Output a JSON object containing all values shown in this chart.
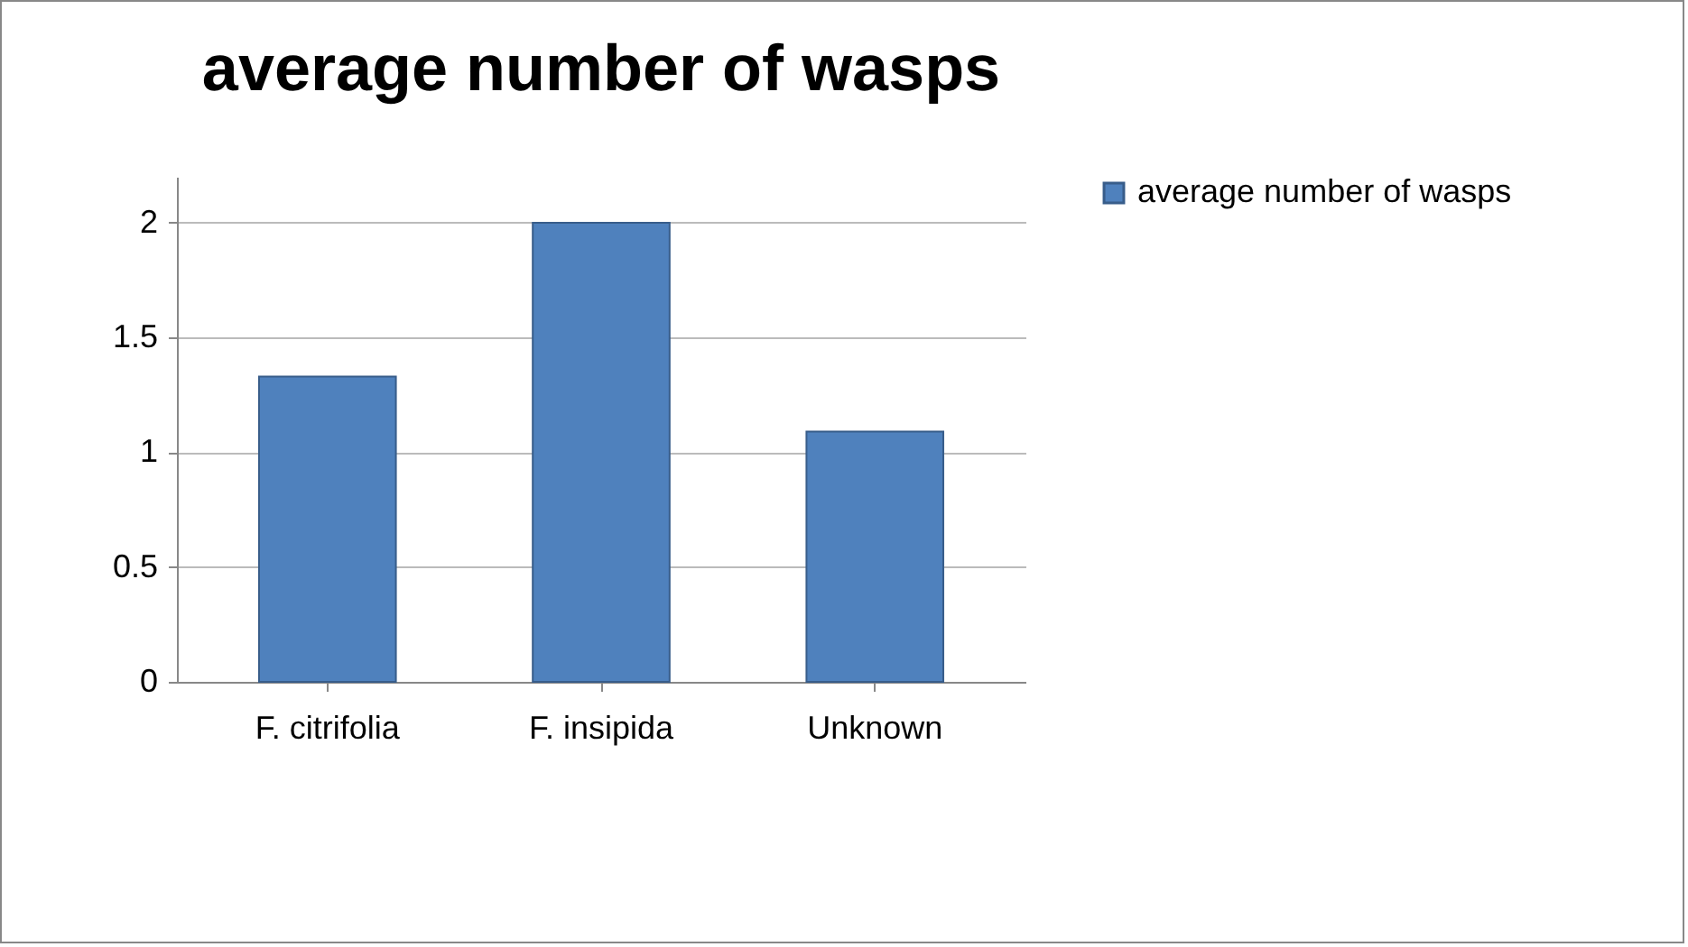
{
  "chart_data": {
    "type": "bar",
    "title": "average number of wasps",
    "categories": [
      "F. citrifolia",
      "F. insipida",
      "Unknown"
    ],
    "series": [
      {
        "name": "average number of wasps",
        "color": "#4f81bd",
        "values": [
          1.33,
          2,
          1.09
        ]
      }
    ],
    "ylim": [
      0,
      2.2
    ],
    "yticks": [
      0,
      0.5,
      1,
      1.5,
      2
    ],
    "grid": "y",
    "legend": "right"
  }
}
